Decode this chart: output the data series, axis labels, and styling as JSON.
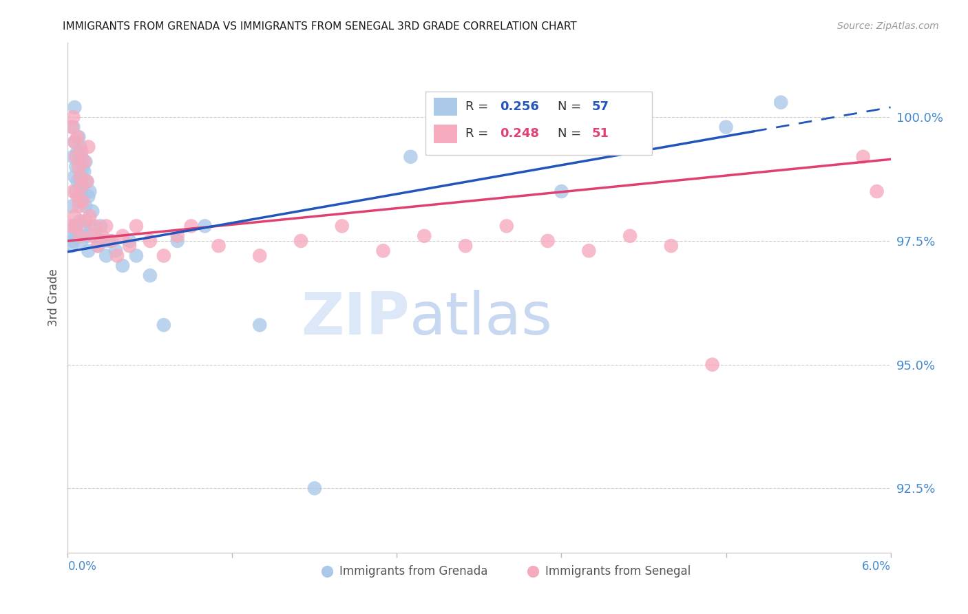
{
  "title": "IMMIGRANTS FROM GRENADA VS IMMIGRANTS FROM SENEGAL 3RD GRADE CORRELATION CHART",
  "source": "Source: ZipAtlas.com",
  "ylabel": "3rd Grade",
  "y_tick_labels": [
    "92.5%",
    "95.0%",
    "97.5%",
    "100.0%"
  ],
  "y_tick_values": [
    92.5,
    95.0,
    97.5,
    100.0
  ],
  "xlim": [
    0.0,
    6.0
  ],
  "ylim": [
    91.2,
    101.5
  ],
  "grenada_color": "#aac8e8",
  "senegal_color": "#f5aabe",
  "grenada_line_color": "#2255bb",
  "senegal_line_color": "#e04070",
  "watermark_zip_color": "#d8e8f8",
  "watermark_atlas_color": "#c8d8f0",
  "title_color": "#1a1a1a",
  "source_color": "#999999",
  "axis_label_color": "#4488cc",
  "legend_r1": "0.256",
  "legend_n1": "57",
  "legend_r2": "0.248",
  "legend_n2": "51",
  "grenada_label": "Immigrants from Grenada",
  "senegal_label": "Immigrants from Senegal",
  "grenada_x": [
    0.02,
    0.03,
    0.03,
    0.04,
    0.04,
    0.04,
    0.05,
    0.05,
    0.05,
    0.05,
    0.06,
    0.06,
    0.06,
    0.07,
    0.07,
    0.08,
    0.08,
    0.08,
    0.09,
    0.09,
    0.09,
    0.1,
    0.1,
    0.1,
    0.11,
    0.11,
    0.12,
    0.12,
    0.13,
    0.13,
    0.14,
    0.14,
    0.15,
    0.15,
    0.16,
    0.17,
    0.18,
    0.2,
    0.22,
    0.24,
    0.26,
    0.28,
    0.3,
    0.35,
    0.4,
    0.45,
    0.5,
    0.6,
    0.7,
    0.8,
    1.0,
    1.4,
    1.8,
    2.5,
    3.6,
    4.8,
    5.2
  ],
  "grenada_y": [
    97.6,
    98.2,
    97.4,
    99.8,
    99.2,
    97.5,
    100.2,
    99.5,
    98.8,
    97.8,
    99.0,
    98.5,
    97.6,
    99.3,
    98.7,
    99.6,
    99.1,
    98.3,
    99.4,
    98.6,
    97.9,
    99.2,
    98.8,
    97.5,
    99.0,
    98.4,
    98.9,
    97.8,
    99.1,
    98.2,
    98.7,
    97.6,
    98.4,
    97.3,
    98.5,
    97.8,
    98.1,
    97.6,
    97.4,
    97.8,
    97.5,
    97.2,
    97.5,
    97.3,
    97.0,
    97.5,
    97.2,
    96.8,
    95.8,
    97.5,
    97.8,
    95.8,
    92.5,
    99.2,
    98.5,
    99.8,
    100.3
  ],
  "senegal_x": [
    0.02,
    0.03,
    0.04,
    0.04,
    0.05,
    0.05,
    0.06,
    0.06,
    0.07,
    0.07,
    0.08,
    0.08,
    0.09,
    0.09,
    0.1,
    0.1,
    0.11,
    0.12,
    0.13,
    0.14,
    0.15,
    0.16,
    0.18,
    0.2,
    0.22,
    0.25,
    0.28,
    0.32,
    0.36,
    0.4,
    0.45,
    0.5,
    0.6,
    0.7,
    0.8,
    0.9,
    1.1,
    1.4,
    1.7,
    2.0,
    2.3,
    2.6,
    2.9,
    3.2,
    3.5,
    3.8,
    4.1,
    4.4,
    4.7,
    5.8,
    5.9
  ],
  "senegal_y": [
    97.8,
    99.8,
    100.0,
    98.5,
    99.5,
    98.0,
    99.2,
    97.8,
    99.6,
    98.4,
    99.0,
    98.2,
    98.8,
    97.6,
    99.3,
    98.6,
    98.3,
    99.1,
    97.9,
    98.7,
    99.4,
    98.0,
    97.6,
    97.8,
    97.4,
    97.6,
    97.8,
    97.5,
    97.2,
    97.6,
    97.4,
    97.8,
    97.5,
    97.2,
    97.6,
    97.8,
    97.4,
    97.2,
    97.5,
    97.8,
    97.3,
    97.6,
    97.4,
    97.8,
    97.5,
    97.3,
    97.6,
    97.4,
    95.0,
    99.2,
    98.5
  ]
}
